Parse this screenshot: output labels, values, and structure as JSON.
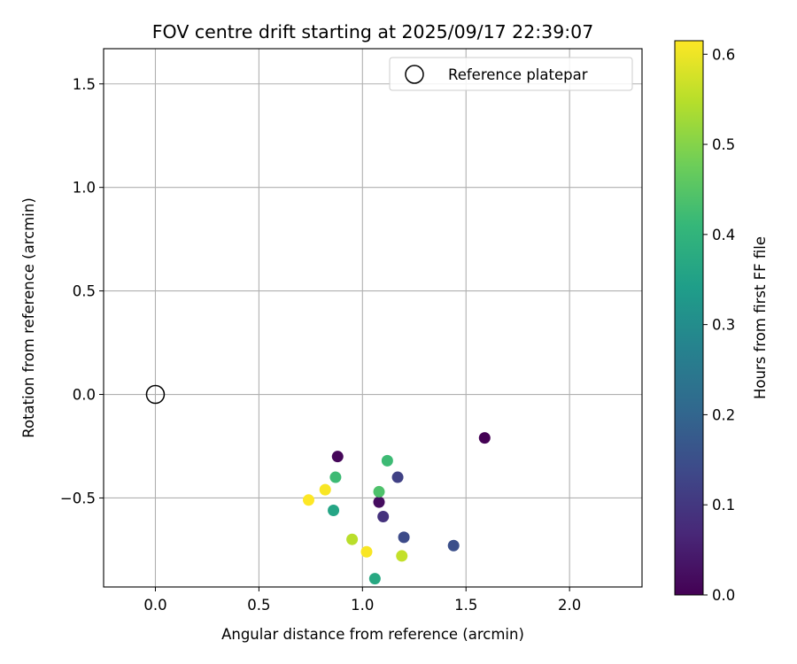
{
  "chart_data": {
    "type": "scatter",
    "title": "FOV centre drift starting at 2025/09/17 22:39:07",
    "xlabel": "Angular distance from reference (arcmin)",
    "ylabel": "Rotation from reference (arcmin)",
    "xlim": [
      -0.25,
      2.35
    ],
    "ylim": [
      -0.93,
      1.67
    ],
    "xticks": [
      0.0,
      0.5,
      1.0,
      1.5,
      2.0
    ],
    "xtick_labels": [
      "0.0",
      "0.5",
      "1.0",
      "1.5",
      "2.0"
    ],
    "yticks": [
      -0.5,
      0.0,
      0.5,
      1.0,
      1.5
    ],
    "ytick_labels": [
      "−0.5",
      "0.0",
      "0.5",
      "1.0",
      "1.5"
    ],
    "grid": true,
    "legend": {
      "position": "top-right",
      "entries": [
        "Reference platepar"
      ]
    },
    "reference_point": {
      "x": 0.0,
      "y": 0.0,
      "label": "Reference platepar"
    },
    "points": [
      {
        "x": 1.59,
        "y": -0.21,
        "t": 0.0
      },
      {
        "x": 0.88,
        "y": -0.3,
        "t": 0.01
      },
      {
        "x": 1.08,
        "y": -0.52,
        "t": 0.02
      },
      {
        "x": 1.1,
        "y": -0.59,
        "t": 0.09
      },
      {
        "x": 1.17,
        "y": -0.4,
        "t": 0.12
      },
      {
        "x": 1.2,
        "y": -0.69,
        "t": 0.14
      },
      {
        "x": 1.44,
        "y": -0.73,
        "t": 0.15
      },
      {
        "x": 0.86,
        "y": -0.56,
        "t": 0.36
      },
      {
        "x": 1.06,
        "y": -0.89,
        "t": 0.37
      },
      {
        "x": 0.87,
        "y": -0.4,
        "t": 0.42
      },
      {
        "x": 1.12,
        "y": -0.32,
        "t": 0.42
      },
      {
        "x": 1.08,
        "y": -0.47,
        "t": 0.44
      },
      {
        "x": 0.95,
        "y": -0.7,
        "t": 0.55
      },
      {
        "x": 1.19,
        "y": -0.78,
        "t": 0.56
      },
      {
        "x": 1.02,
        "y": -0.76,
        "t": 0.61
      },
      {
        "x": 0.82,
        "y": -0.46,
        "t": 0.61
      },
      {
        "x": 0.74,
        "y": -0.51,
        "t": 0.62
      }
    ],
    "colorbar": {
      "label": "Hours from first FF file",
      "range": [
        0.0,
        0.615
      ],
      "ticks": [
        0.0,
        0.1,
        0.2,
        0.3,
        0.4,
        0.5,
        0.6
      ],
      "tick_labels": [
        "0.0",
        "0.1",
        "0.2",
        "0.3",
        "0.4",
        "0.5",
        "0.6"
      ],
      "colormap": "viridis",
      "stops": [
        "#440154",
        "#482878",
        "#3e4989",
        "#31688e",
        "#26828e",
        "#1f9e89",
        "#35b779",
        "#6ece58",
        "#b5de2b",
        "#fde725"
      ]
    }
  }
}
